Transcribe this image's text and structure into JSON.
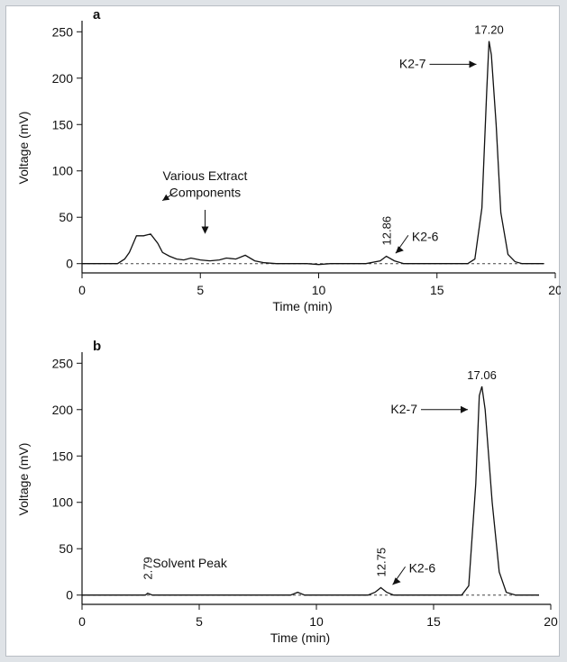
{
  "chart_data": [
    {
      "type": "line",
      "panel_label": "a",
      "xlabel": "Time (min)",
      "ylabel": "Voltage (mV)",
      "xlim": [
        0,
        20
      ],
      "ylim": [
        -10,
        260
      ],
      "xticks": [
        0,
        5,
        10,
        15,
        20
      ],
      "yticks": [
        0,
        50,
        100,
        150,
        200,
        250
      ],
      "baseline_dashed": true,
      "grid": false,
      "series": [
        {
          "values_x": [
            0.0,
            1.5,
            1.8,
            2.0,
            2.1,
            2.3,
            2.6,
            2.9,
            3.2,
            3.4,
            3.7,
            4.0,
            4.3,
            4.6,
            5.0,
            5.4,
            5.8,
            6.1,
            6.5,
            6.9,
            7.3,
            7.7,
            8.2,
            9.0,
            9.5,
            10.0,
            10.5,
            11.0,
            12.0,
            12.6,
            12.86,
            13.2,
            13.6,
            14.5,
            15.5,
            16.3,
            16.6,
            16.9,
            17.1,
            17.2,
            17.3,
            17.5,
            17.7,
            18.0,
            18.3,
            18.6,
            19.5
          ],
          "values_y": [
            0,
            0,
            5,
            12,
            18,
            30,
            30,
            32,
            22,
            12,
            8,
            5,
            4,
            6,
            4,
            3,
            4,
            6,
            5,
            9,
            3,
            1,
            0,
            0,
            0,
            -1,
            0,
            0,
            0,
            3,
            8,
            3,
            0,
            0,
            0,
            0,
            5,
            60,
            185,
            240,
            225,
            150,
            55,
            10,
            2,
            0,
            0
          ]
        }
      ],
      "annotations": [
        {
          "text": "17.20",
          "x": 17.2,
          "y": 240
        },
        {
          "text": "K2-7",
          "x": 17.2,
          "y": 215,
          "arrow": true
        },
        {
          "text": "12.86",
          "x": 12.86,
          "y": 8
        },
        {
          "text": "K2-6",
          "x": 13.1,
          "y": 15,
          "arrow": true
        },
        {
          "text": "Various Extract",
          "x": 5.2,
          "y": 90
        },
        {
          "text": "Components",
          "x": 5.2,
          "y": 72
        }
      ]
    },
    {
      "type": "line",
      "panel_label": "b",
      "xlabel": "Time (min)",
      "ylabel": "Voltage (mV)",
      "xlim": [
        0,
        20
      ],
      "ylim": [
        -10,
        260
      ],
      "xticks": [
        0,
        5,
        10,
        15,
        20
      ],
      "yticks": [
        0,
        50,
        100,
        150,
        200,
        250
      ],
      "baseline_dashed": true,
      "grid": false,
      "series": [
        {
          "values_x": [
            0.0,
            2.0,
            2.7,
            2.8,
            3.0,
            8.9,
            9.2,
            9.5,
            12.2,
            12.5,
            12.75,
            13.0,
            13.3,
            14.5,
            16.2,
            16.5,
            16.8,
            16.95,
            17.06,
            17.2,
            17.5,
            17.8,
            18.1,
            18.5,
            19.5
          ],
          "values_y": [
            0,
            0,
            0,
            2,
            0,
            0,
            3,
            0,
            0,
            3,
            8,
            3,
            0,
            0,
            0,
            10,
            120,
            215,
            225,
            200,
            100,
            25,
            3,
            0,
            0
          ]
        }
      ],
      "annotations": [
        {
          "text": "17.06",
          "x": 17.06,
          "y": 225
        },
        {
          "text": "K2-7",
          "x": 17.0,
          "y": 200,
          "arrow": true
        },
        {
          "text": "12.75",
          "x": 12.75,
          "y": 8
        },
        {
          "text": "K2-6",
          "x": 13.1,
          "y": 15,
          "arrow": true
        },
        {
          "text": "2.79",
          "x": 2.79,
          "y": 5
        },
        {
          "text": "Solvent Peak",
          "x": 4.6,
          "y": 30
        }
      ]
    }
  ]
}
